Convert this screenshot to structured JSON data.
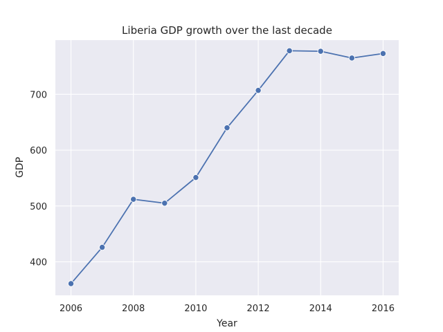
{
  "chart_data": {
    "type": "line",
    "title": "Liberia GDP growth over the last decade",
    "xlabel": "Year",
    "ylabel": "GDP",
    "x": [
      2006,
      2007,
      2008,
      2009,
      2010,
      2011,
      2012,
      2013,
      2014,
      2015,
      2016
    ],
    "series": [
      {
        "values": [
          361,
          426,
          512,
          505,
          551,
          640,
          707,
          778,
          777,
          765,
          773
        ]
      }
    ],
    "xlim": [
      2005.5,
      2016.5
    ],
    "ylim": [
      340,
      797
    ],
    "xticks": [
      2006,
      2008,
      2010,
      2012,
      2014,
      2016
    ],
    "yticks": [
      400,
      500,
      600,
      700
    ],
    "grid": true,
    "line_color": "#4c72b0",
    "plot_background": "#eaeaf2",
    "marker": "circle"
  }
}
